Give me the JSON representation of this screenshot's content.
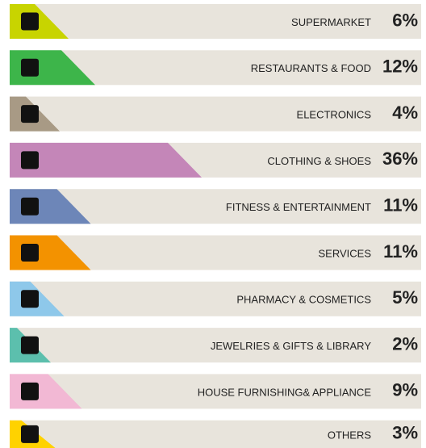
{
  "chart_data": {
    "type": "bar",
    "categories": [
      "SUPERMARKET",
      "RESTAURANTS & FOOD",
      "ELECTRONICS",
      "CLOTHING & SHOES",
      "FITNESS & ENTERTAINMENT",
      "SERVICES",
      "PHARMACY & COSMETICS",
      "JEWELRIES & GIFTS & LIBRARY",
      "HOUSE FURNISHING& APPLIANCE",
      "OTHERS"
    ],
    "values": [
      6,
      12,
      4,
      36,
      11,
      11,
      5,
      2,
      9,
      3
    ],
    "value_labels": [
      "6%",
      "12%",
      "4%",
      "36%",
      "11%",
      "11%",
      "5%",
      "2%",
      "9%",
      "3%"
    ],
    "colors": [
      "#c8d400",
      "#3db54a",
      "#a89a85",
      "#c486b8",
      "#6d86b8",
      "#f39200",
      "#8ec8ea",
      "#5cbfad",
      "#f2b8d4",
      "#ffd200"
    ]
  }
}
